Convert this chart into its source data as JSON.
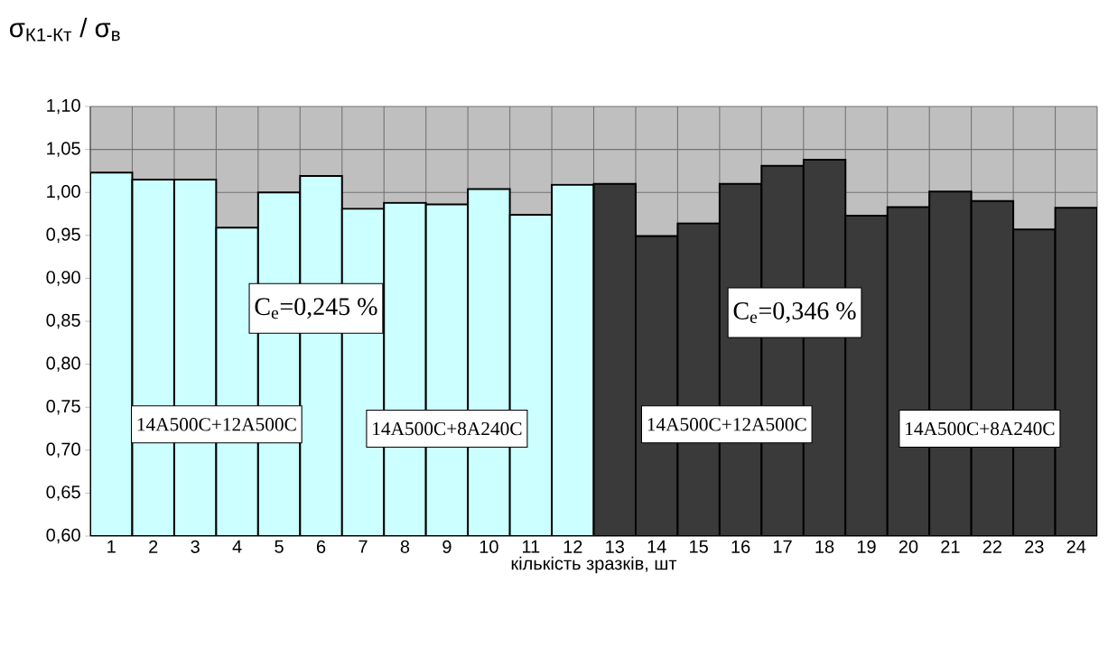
{
  "chart_data": {
    "type": "bar",
    "ylabel": "σ$_{К1-Кт}$ / σ$_{в}$",
    "xlabel": "кількість зразків, шт",
    "categories": [
      "1",
      "2",
      "3",
      "4",
      "5",
      "6",
      "7",
      "8",
      "9",
      "10",
      "11",
      "12",
      "13",
      "14",
      "15",
      "16",
      "17",
      "18",
      "19",
      "20",
      "21",
      "22",
      "23",
      "24"
    ],
    "values": [
      1.023,
      1.015,
      1.015,
      0.959,
      1.0,
      1.019,
      0.981,
      0.988,
      0.986,
      1.004,
      0.974,
      1.009,
      1.01,
      0.949,
      0.964,
      1.01,
      1.031,
      1.038,
      0.973,
      0.983,
      1.001,
      0.99,
      0.957,
      0.982
    ],
    "colors": [
      "#ccffff",
      "#ccffff",
      "#ccffff",
      "#ccffff",
      "#ccffff",
      "#ccffff",
      "#ccffff",
      "#ccffff",
      "#ccffff",
      "#ccffff",
      "#ccffff",
      "#ccffff",
      "#3a3a3a",
      "#3a3a3a",
      "#3a3a3a",
      "#3a3a3a",
      "#3a3a3a",
      "#3a3a3a",
      "#3a3a3a",
      "#3a3a3a",
      "#3a3a3a",
      "#3a3a3a",
      "#3a3a3a",
      "#3a3a3a"
    ],
    "ylim": [
      0.6,
      1.1
    ],
    "yticks": [
      {
        "value": 0.6,
        "label": "0,60"
      },
      {
        "value": 0.65,
        "label": "0,65"
      },
      {
        "value": 0.7,
        "label": "0,70"
      },
      {
        "value": 0.75,
        "label": "0,75"
      },
      {
        "value": 0.8,
        "label": "0,80"
      },
      {
        "value": 0.85,
        "label": "0,85"
      },
      {
        "value": 0.9,
        "label": "0,90"
      },
      {
        "value": 0.95,
        "label": "0,95"
      },
      {
        "value": 1.0,
        "label": "1,00"
      },
      {
        "value": 1.05,
        "label": "1,05"
      },
      {
        "value": 1.1,
        "label": "1,10"
      }
    ],
    "grid": true,
    "annotations": [
      "C$_{e}$=0,245 %",
      "C$_{e}$=0,346 %",
      "14A500C+12A500C",
      "14A500C+8A240C",
      "14A500C+12A500C",
      "14A500C+8A240C"
    ]
  }
}
